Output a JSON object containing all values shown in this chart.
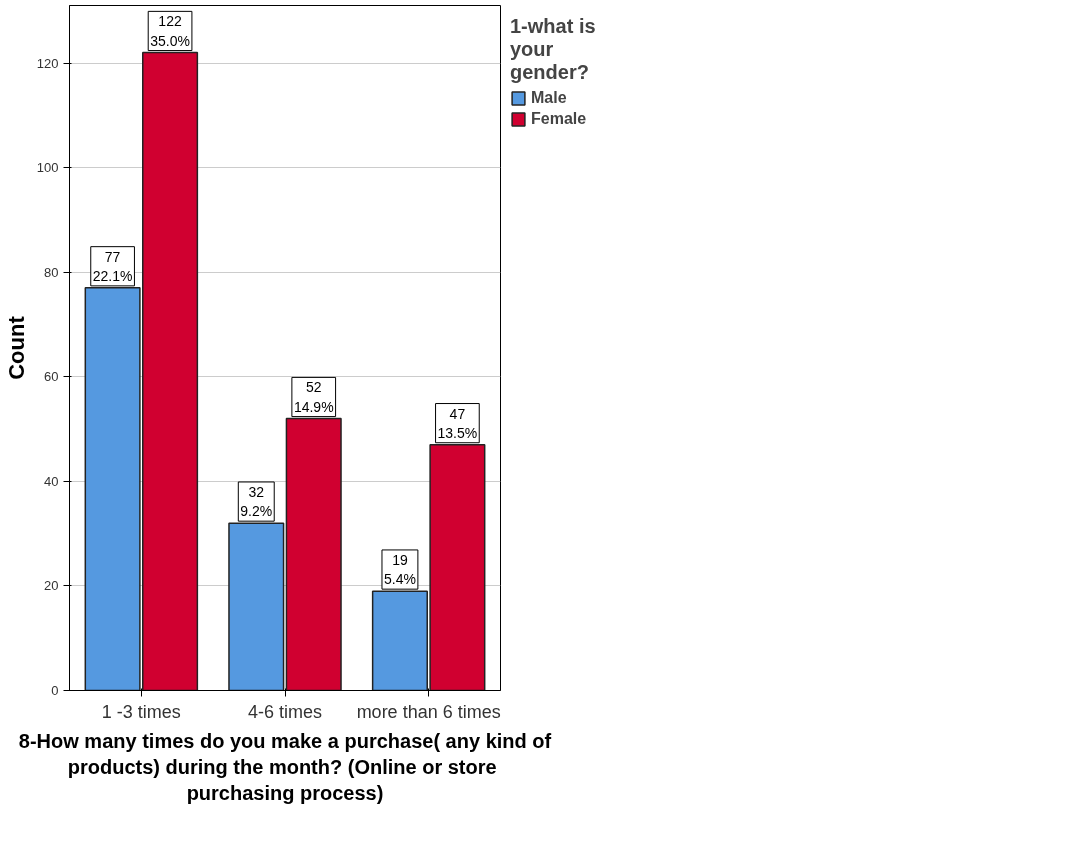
{
  "chart_data": {
    "type": "bar",
    "xlabel": "8-How many times do you make a purchase( any kind of products)  during the month? (Online or store purchasing process)",
    "ylabel": "Count",
    "legend_title": "1-what is your gender?",
    "categories": [
      "1 -3 times",
      "4-6 times",
      "more than 6 times"
    ],
    "series": [
      {
        "name": "Male",
        "color": "#5599e0",
        "values": [
          77,
          32,
          19
        ],
        "value_labels": [
          "77\n22.1%",
          "32\n9.2%",
          "19\n5.4%"
        ]
      },
      {
        "name": "Female",
        "color": "#d00030",
        "values": [
          122,
          52,
          47
        ],
        "value_labels": [
          "122\n35.0%",
          "52\n14.9%",
          "47\n13.5%"
        ]
      }
    ],
    "ylim": [
      0,
      131
    ],
    "yticks": [
      0,
      20,
      40,
      60,
      80,
      100,
      120
    ],
    "grid": "y",
    "legend": "top right"
  }
}
